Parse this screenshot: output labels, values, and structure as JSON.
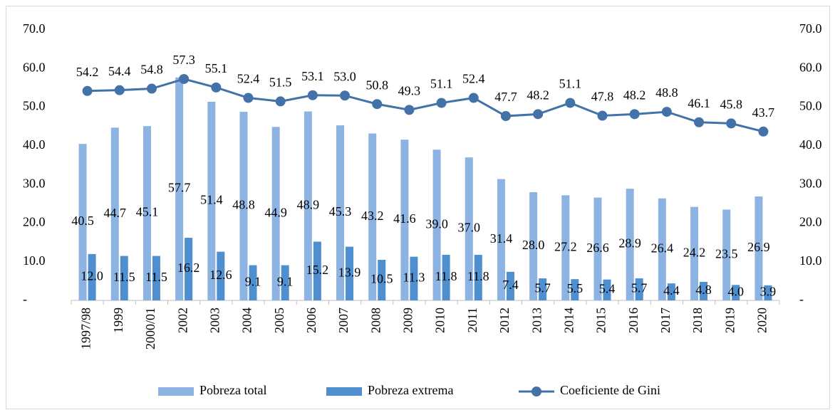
{
  "chart_data": {
    "type": "bar_line",
    "categories": [
      "1997/98",
      "1999",
      "2000/01",
      "2002",
      "2003",
      "2004",
      "2005",
      "2006",
      "2007",
      "2008",
      "2009",
      "2010",
      "2011",
      "2012",
      "2013",
      "2014",
      "2015",
      "2016",
      "2017",
      "2018",
      "2019",
      "2020"
    ],
    "series": [
      {
        "name": "Pobreza total",
        "type": "bar",
        "color": "#8db3e2",
        "values": [
          40.5,
          44.7,
          45.1,
          57.7,
          51.4,
          48.8,
          44.9,
          48.9,
          45.3,
          43.2,
          41.6,
          39.0,
          37.0,
          31.4,
          28.0,
          27.2,
          26.6,
          28.9,
          26.4,
          24.2,
          23.5,
          26.9
        ],
        "value_labels": [
          "40.5",
          "44.7",
          "45.1",
          "57.7",
          "51.4",
          "48.8",
          "44.9",
          "48.9",
          "45.3",
          "43.2",
          "41.6",
          "39.0",
          "37.0",
          "31.4",
          "28.0",
          "27.2",
          "26.6",
          "28.9",
          "26.4",
          "24.2",
          "23.5",
          "26.9"
        ]
      },
      {
        "name": "Pobreza extrema",
        "type": "bar",
        "color": "#4f8fd0",
        "values": [
          12.0,
          11.5,
          11.5,
          16.2,
          12.6,
          9.1,
          9.1,
          15.2,
          13.9,
          10.5,
          11.3,
          11.8,
          11.8,
          7.4,
          5.7,
          5.5,
          5.4,
          5.7,
          4.4,
          4.8,
          4.0,
          3.9
        ],
        "value_labels": [
          "12.0",
          "11.5",
          "11.5",
          "16.2",
          "12.6",
          "9.1",
          "9.1",
          "15.2",
          "13.9",
          "10.5",
          "11.3",
          "11.8",
          "11.8",
          "7.4",
          "5.7",
          "5.5",
          "5.4",
          "5.7",
          "4.4",
          "4.8",
          "4.0",
          "3.9"
        ]
      },
      {
        "name": "Coeficiente de Gini",
        "type": "line",
        "axis": "y2",
        "color": "#4272a8",
        "values": [
          54.2,
          54.4,
          54.8,
          57.3,
          55.1,
          52.4,
          51.5,
          53.1,
          53.0,
          50.8,
          49.3,
          51.1,
          52.4,
          47.7,
          48.2,
          51.1,
          47.8,
          48.2,
          48.8,
          46.1,
          45.8,
          43.7
        ],
        "value_labels": [
          "54.2",
          "54.4",
          "54.8",
          "57.3",
          "55.1",
          "52.4",
          "51.5",
          "53.1",
          "53.0",
          "50.8",
          "49.3",
          "51.1",
          "52.4",
          "47.7",
          "48.2",
          "51.1",
          "47.8",
          "48.2",
          "48.8",
          "46.1",
          "45.8",
          "43.7"
        ]
      }
    ],
    "ylim": [
      0,
      70
    ],
    "yticks": [
      {
        "value": 0,
        "label": "-"
      },
      {
        "value": 10,
        "label": "10.0"
      },
      {
        "value": 20,
        "label": "20.0"
      },
      {
        "value": 30,
        "label": "30.0"
      },
      {
        "value": 40,
        "label": "40.0"
      },
      {
        "value": 50,
        "label": "50.0"
      },
      {
        "value": 60,
        "label": "60.0"
      },
      {
        "value": 70,
        "label": "70.0"
      }
    ],
    "y2lim": [
      0,
      70
    ],
    "y2ticks": [
      {
        "value": 0,
        "label": "-"
      },
      {
        "value": 10,
        "label": "10.0"
      },
      {
        "value": 20,
        "label": "20.0"
      },
      {
        "value": 30,
        "label": "30.0"
      },
      {
        "value": 40,
        "label": "40.0"
      },
      {
        "value": 50,
        "label": "50.0"
      },
      {
        "value": 60,
        "label": "60.0"
      },
      {
        "value": 70,
        "label": "70.0"
      }
    ],
    "legend": "bottom"
  }
}
